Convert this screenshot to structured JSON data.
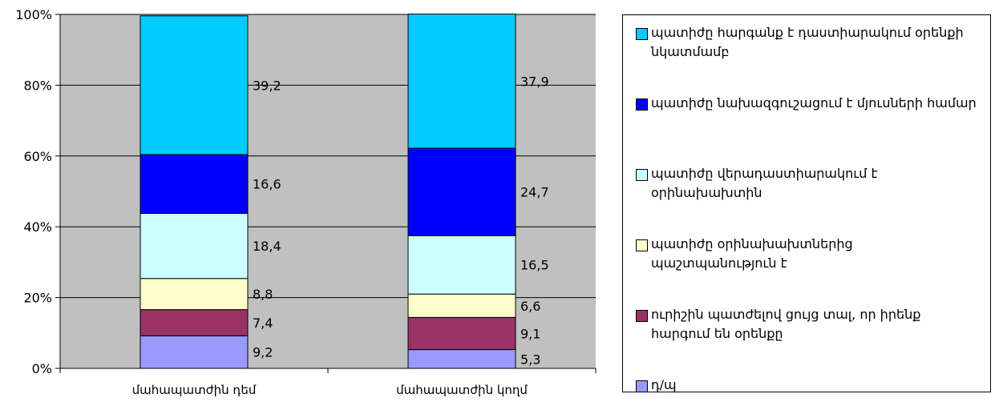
{
  "chart_data": {
    "type": "stacked-bar-100",
    "categories": [
      "մահապատժին դեմ",
      "մահապատժին կողմ"
    ],
    "ylim": [
      0,
      100
    ],
    "y_ticks": [
      "0%",
      "20%",
      "40%",
      "60%",
      "80%",
      "100%"
    ],
    "grid": true,
    "legend_position": "right",
    "series": [
      {
        "name": "դ/պ",
        "color": "#9999ff",
        "values": [
          9.2,
          5.3
        ],
        "labels": [
          "9,2",
          "5,3"
        ]
      },
      {
        "name": "ուրիշին պատժելով ցույց տալ, որ իրենք հարգում են օրենքը",
        "color": "#993366",
        "values": [
          7.4,
          9.1
        ],
        "labels": [
          "7,4",
          "9,1"
        ]
      },
      {
        "name": "պատիժը օրինախախտներից պաշտպանություն է",
        "color": "#ffffcc",
        "values": [
          8.8,
          6.6
        ],
        "labels": [
          "8,8",
          "6,6"
        ]
      },
      {
        "name": "պատիժը վերադաստիարակում է օրինախախտին",
        "color": "#ccffff",
        "values": [
          18.4,
          16.5
        ],
        "labels": [
          "18,4",
          "16,5"
        ]
      },
      {
        "name": "պատիժը նախազգուշացում է մյուսների համար",
        "color": "#0000ff",
        "values": [
          16.6,
          24.7
        ],
        "labels": [
          "16,6",
          "24,7"
        ]
      },
      {
        "name": "պատիժը հարգանք է դաստիարակում օրենքի նկատմամբ",
        "color": "#00ccff",
        "values": [
          39.2,
          37.9
        ],
        "labels": [
          "39,2",
          "37,9"
        ]
      }
    ]
  },
  "legend": {
    "items": [
      {
        "label": "պատիժը հարգանք է դաստիարակում օրենքի նկատմամբ",
        "color": "#00ccff"
      },
      {
        "label": "պատիժը նախազգուշացում է մյուսների համար",
        "color": "#0000ff"
      },
      {
        "label": "պատիժը վերադաստիարակում է օրինախախտին",
        "color": "#ccffff"
      },
      {
        "label": "պատիժը օրինախախտներից պաշտպանություն է",
        "color": "#ffffcc"
      },
      {
        "label": "ուրիշին պատժելով ցույց տալ, որ իրենք հարգում են օրենքը",
        "color": "#993366"
      },
      {
        "label": "դ/պ",
        "color": "#9999ff"
      }
    ]
  }
}
